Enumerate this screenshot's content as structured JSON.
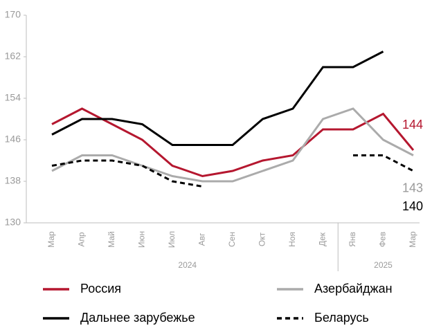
{
  "chart_data": {
    "type": "line",
    "categories": [
      "Мар",
      "Апр",
      "Май",
      "Июн",
      "Июл",
      "Авг",
      "Сен",
      "Окт",
      "Ноя",
      "Дек",
      "Янв",
      "Фев",
      "Мар"
    ],
    "x_groups": [
      {
        "label": "2024",
        "count": 10
      },
      {
        "label": "2025",
        "count": 3
      }
    ],
    "ylim": [
      130,
      170
    ],
    "yticks": [
      130,
      138,
      146,
      154,
      162,
      170
    ],
    "series": [
      {
        "name": "Россия",
        "color": "#b5172f",
        "dash": false,
        "values": [
          149,
          152,
          149,
          146,
          141,
          139,
          140,
          142,
          143,
          148,
          148,
          151,
          144
        ],
        "value_labels": [
          null,
          null,
          null,
          null,
          null,
          null,
          null,
          null,
          null,
          null,
          null,
          null,
          "144"
        ]
      },
      {
        "name": "Азербайджан",
        "color": "#ababab",
        "dash": false,
        "values": [
          140,
          143,
          143,
          141,
          139,
          138,
          138,
          140,
          142,
          150,
          152,
          146,
          143
        ],
        "value_labels": [
          null,
          null,
          null,
          null,
          null,
          null,
          null,
          null,
          null,
          null,
          null,
          null,
          "143"
        ]
      },
      {
        "name": "Дальнее зарубежье",
        "color": "#000000",
        "dash": false,
        "values": [
          147,
          150,
          150,
          149,
          145,
          145,
          145,
          150,
          152,
          160,
          160,
          163,
          null
        ]
      },
      {
        "name": "Беларусь",
        "color": "#000000",
        "dash": true,
        "values": [
          141,
          142,
          142,
          141,
          138,
          137,
          null,
          null,
          null,
          null,
          143,
          143,
          140
        ],
        "value_labels": [
          null,
          null,
          null,
          null,
          null,
          null,
          null,
          null,
          null,
          null,
          null,
          null,
          "140"
        ]
      }
    ]
  }
}
